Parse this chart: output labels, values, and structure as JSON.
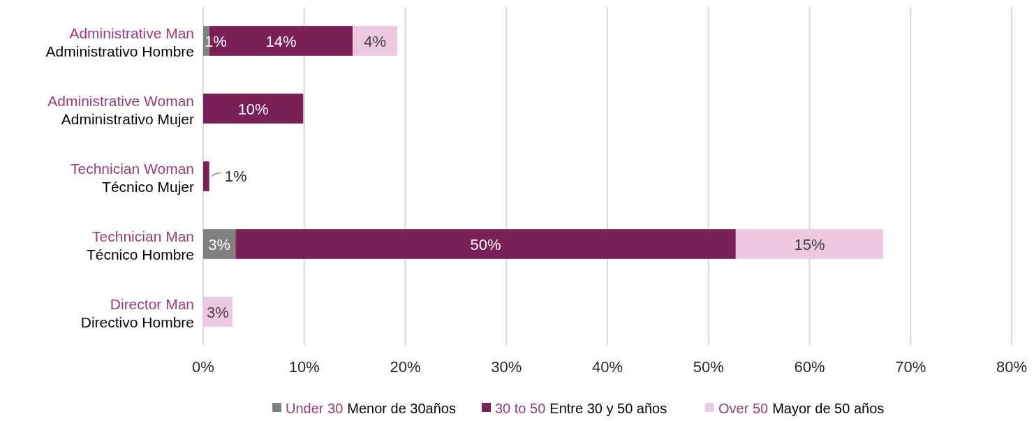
{
  "chart_data": {
    "type": "bar",
    "orientation": "horizontal",
    "stacked": true,
    "categories": [
      "Administrative Man\nAdministrativo Hombre",
      "Administrative Woman\nAdministrativo Mujer",
      "Technician Woman\nTécnico Mujer",
      "Technician Man\nTécnico Hombre",
      "Director Man\nDirectivo Hombre"
    ],
    "series": [
      {
        "name": "Under 30\nMenor de 30años",
        "color": "#808080",
        "values": [
          0.6,
          null,
          null,
          3.2,
          null
        ],
        "value_labels": [
          "1%",
          null,
          null,
          "3%",
          null
        ]
      },
      {
        "name": "30 to 50\nEntre 30 y 50 años",
        "color": "#7b2056",
        "values": [
          14.2,
          9.9,
          0.6,
          49.5,
          null
        ],
        "value_labels": [
          "14%",
          "10%",
          "1%",
          "50%",
          null
        ]
      },
      {
        "name": "Over 50\nMayor de 50 años",
        "color": "#ecc9e0",
        "values": [
          4.4,
          null,
          null,
          14.6,
          2.9
        ],
        "value_labels": [
          "4%",
          null,
          null,
          "15%",
          "3%"
        ]
      }
    ],
    "xlim": [
      0,
      80
    ],
    "xticks": [
      {
        "value": 0,
        "label": "0%"
      },
      {
        "value": 10,
        "label": "10%"
      },
      {
        "value": 20,
        "label": "20%"
      },
      {
        "value": 30,
        "label": "30%"
      },
      {
        "value": 40,
        "label": "40%"
      },
      {
        "value": 50,
        "label": "50%"
      },
      {
        "value": 60,
        "label": "60%"
      },
      {
        "value": 70,
        "label": "70%"
      },
      {
        "value": 80,
        "label": "80%"
      }
    ],
    "grid": "x",
    "legend": "bottom"
  }
}
